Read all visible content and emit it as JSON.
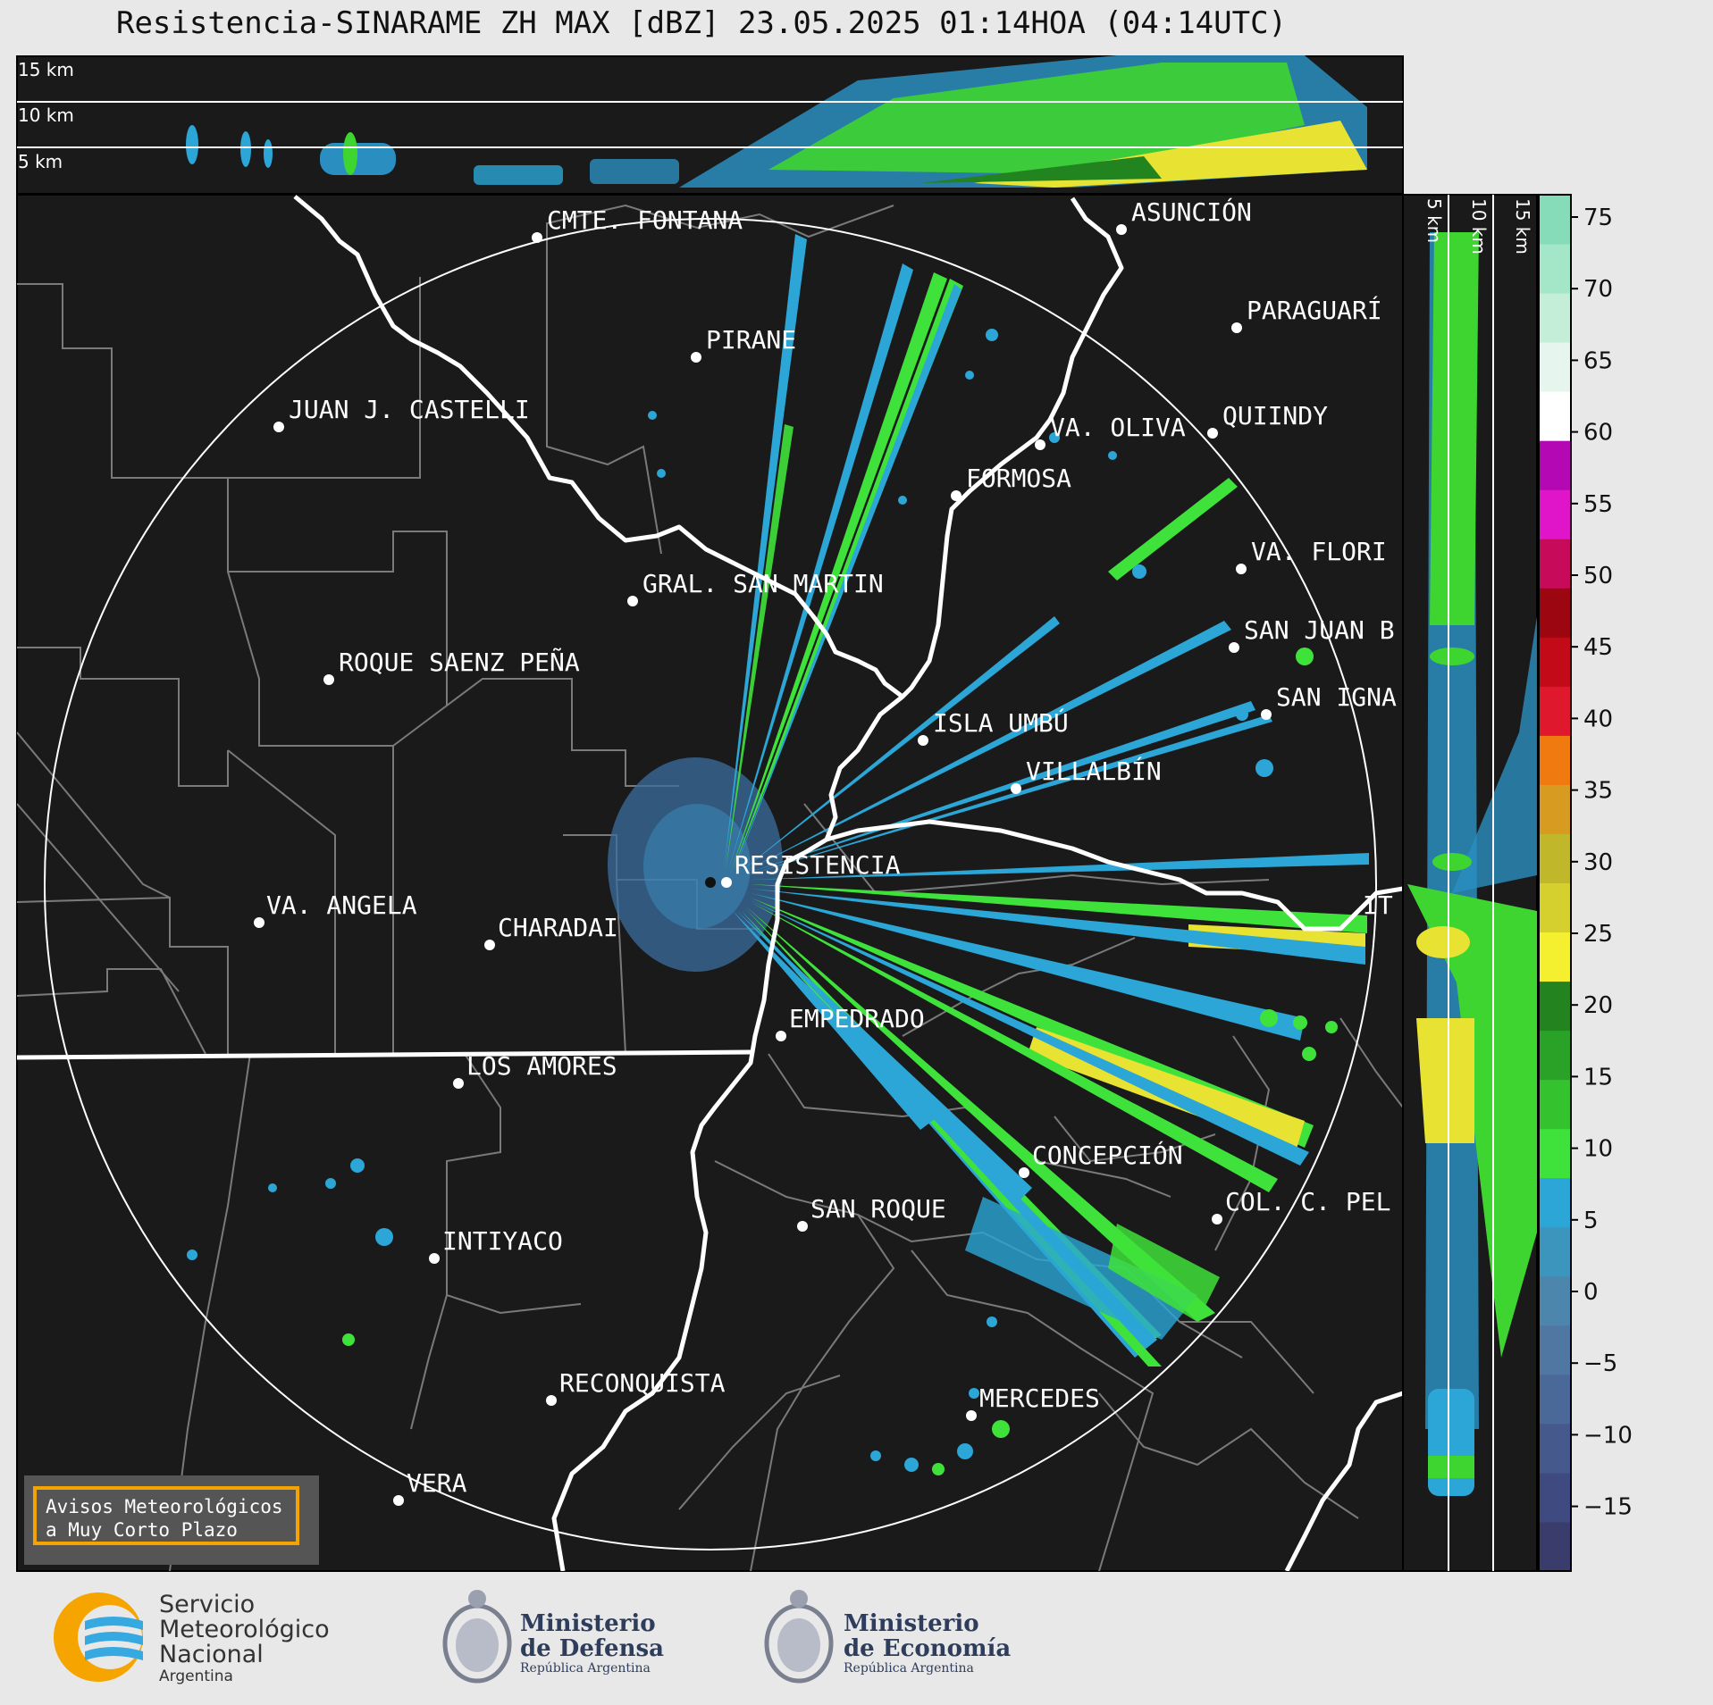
{
  "title": "Resistencia-SINARAME ZH MAX [dBZ] 23.05.2025 01:14HOA (04:14UTC)",
  "top_profile_labels": [
    "15 km",
    "10 km",
    "5 km"
  ],
  "side_profile_labels": [
    "5 km",
    "10 km",
    "15 km"
  ],
  "colorbar": {
    "ticks": [
      "75",
      "70",
      "65",
      "60",
      "55",
      "50",
      "45",
      "40",
      "35",
      "30",
      "25",
      "20",
      "15",
      "10",
      "5",
      "0",
      "−5",
      "−10",
      "−15"
    ],
    "colors": [
      "#3a3d6b",
      "#3f4a80",
      "#45598c",
      "#4a6898",
      "#4f77a2",
      "#4c86ac",
      "#3b95bd",
      "#2ba6d6",
      "#3fe23a",
      "#34c22e",
      "#2aa227",
      "#23841f",
      "#f5f02f",
      "#d6d02e",
      "#c0b82a",
      "#d89b22",
      "#f07a10",
      "#e0182e",
      "#c20a18",
      "#9c0610",
      "#c80a5a",
      "#e014c8",
      "#b408b4",
      "#ffffff",
      "#e6f6ee",
      "#c4eed8",
      "#a4e6c8",
      "#86dcb8"
    ]
  },
  "cities": [
    {
      "name": "CMTE. FONTANA"
    },
    {
      "name": "ASUNCIÓN"
    },
    {
      "name": "PARAGUARÍ"
    },
    {
      "name": "PIRANE"
    },
    {
      "name": "JUAN J. CASTELLI"
    },
    {
      "name": "VA. OLIVA"
    },
    {
      "name": "QUIINDY"
    },
    {
      "name": "FORMOSA"
    },
    {
      "name": "VA. FLORI"
    },
    {
      "name": "GRAL. SAN MARTIN"
    },
    {
      "name": "SAN JUAN B"
    },
    {
      "name": "ROQUE SAENZ PEÑA"
    },
    {
      "name": "SAN IGNA"
    },
    {
      "name": "ISLA UMBÚ"
    },
    {
      "name": "VILLALBÍN"
    },
    {
      "name": "RESISTENCIA"
    },
    {
      "name": "IT"
    },
    {
      "name": "VA. ANGELA"
    },
    {
      "name": "CHARADAI"
    },
    {
      "name": "EMPEDRADO"
    },
    {
      "name": "LOS AMORES"
    },
    {
      "name": "CONCEPCIÓN"
    },
    {
      "name": "SAN ROQUE"
    },
    {
      "name": "COL. C. PEL"
    },
    {
      "name": "INTIYACO"
    },
    {
      "name": "RECONQUISTA"
    },
    {
      "name": "MERCEDES"
    },
    {
      "name": "VERA"
    }
  ],
  "avisos": {
    "line1": "Avisos Meteorológicos",
    "line2": "a Muy Corto Plazo"
  },
  "logos": {
    "smn": {
      "line1": "Servicio",
      "line2": "Meteorológico",
      "line3": "Nacional",
      "line4": "Argentina"
    },
    "defensa": {
      "line1": "Ministerio",
      "line2": "de Defensa",
      "line3": "República Argentina"
    },
    "economia": {
      "line1": "Ministerio",
      "line2": "de Economía",
      "line3": "República Argentina"
    }
  }
}
